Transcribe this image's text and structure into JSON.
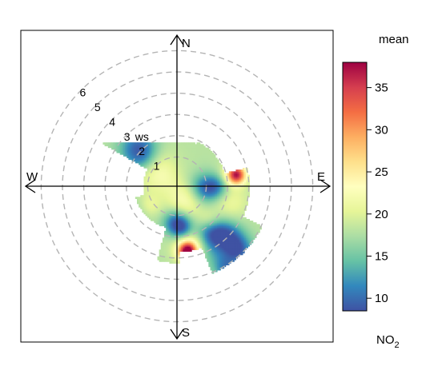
{
  "chart_data": {
    "type": "heatmap",
    "subtype": "polar-plot",
    "title": "",
    "radial_axis": {
      "label": "ws",
      "ticks": [
        1,
        2,
        3,
        4,
        5,
        6
      ],
      "range": [
        0,
        6.6
      ]
    },
    "directions": [
      "N",
      "E",
      "S",
      "W"
    ],
    "colorbar": {
      "title": "mean",
      "label": "NO",
      "label_subscript": "2",
      "range": [
        8.5,
        38
      ],
      "ticks": [
        10,
        15,
        20,
        25,
        30,
        35
      ],
      "colors": [
        "#3f52a3",
        "#3288bd",
        "#66c2a5",
        "#abdda4",
        "#e6f598",
        "#ffffbf",
        "#fee08b",
        "#fdae61",
        "#f46d43",
        "#d53e4f",
        "#9e0142"
      ]
    },
    "grid": true,
    "surface": {
      "extent": [
        -4.0,
        4.0,
        -4.3,
        2.1
      ],
      "resolution": 0.08,
      "sectors": [
        {
          "dir_from": 300,
          "dir_to": 338,
          "ws_max": 4.1
        },
        {
          "dir_from": 338,
          "dir_to": 385,
          "ws_max": 2.2
        },
        {
          "dir_from": 25,
          "dir_to": 75,
          "ws_max": 2.3
        },
        {
          "dir_from": 75,
          "dir_to": 115,
          "ws_max": 3.4
        },
        {
          "dir_from": 115,
          "dir_to": 158,
          "ws_max": 4.4
        },
        {
          "dir_from": 158,
          "dir_to": 178,
          "ws_max": 3.1
        },
        {
          "dir_from": 178,
          "dir_to": 195,
          "ws_max": 3.6
        },
        {
          "dir_from": 195,
          "dir_to": 255,
          "ws_max": 2.0
        },
        {
          "dir_from": 255,
          "dir_to": 300,
          "ws_max": 1.6
        }
      ],
      "base": 18,
      "blobs": [
        {
          "x": -1.8,
          "y": 1.8,
          "s": 0.65,
          "v": -8
        },
        {
          "x": -1.6,
          "y": 1.3,
          "s": 0.5,
          "v": -3
        },
        {
          "x": -1.0,
          "y": 1.1,
          "s": 0.7,
          "v": 2
        },
        {
          "x": -1.0,
          "y": 0.6,
          "s": 0.6,
          "v": 3
        },
        {
          "x": -0.3,
          "y": 0.2,
          "s": 0.45,
          "v": 1
        },
        {
          "x": 0.0,
          "y": -1.7,
          "s": 0.45,
          "v": -9
        },
        {
          "x": 0.25,
          "y": -2.0,
          "s": 0.35,
          "v": -5
        },
        {
          "x": 0.4,
          "y": -0.7,
          "s": 0.6,
          "v": 5
        },
        {
          "x": 1.3,
          "y": -0.1,
          "s": 0.5,
          "v": -8
        },
        {
          "x": 1.9,
          "y": 0.0,
          "s": 0.4,
          "v": -5
        },
        {
          "x": 2.5,
          "y": -0.7,
          "s": 0.6,
          "v": 3
        },
        {
          "x": 2.5,
          "y": 0.6,
          "s": 0.4,
          "v": 3
        },
        {
          "x": 2.8,
          "y": 0.55,
          "s": 0.3,
          "v": 17
        },
        {
          "x": 0.6,
          "y": -2.7,
          "s": 0.55,
          "v": 5
        },
        {
          "x": 1.6,
          "y": -2.2,
          "s": 0.5,
          "v": -8
        },
        {
          "x": 1.5,
          "y": -1.6,
          "s": 0.35,
          "v": 3
        },
        {
          "x": 2.4,
          "y": -2.3,
          "s": 0.5,
          "v": -7
        },
        {
          "x": 2.9,
          "y": -3.0,
          "s": 0.5,
          "v": -8
        },
        {
          "x": 1.8,
          "y": -3.2,
          "s": 0.5,
          "v": -3
        },
        {
          "x": 2.3,
          "y": -3.9,
          "s": 0.4,
          "v": -6
        },
        {
          "x": 0.5,
          "y": -3.05,
          "s": 0.3,
          "v": 20
        },
        {
          "x": -1.9,
          "y": -1.2,
          "s": 0.5,
          "v": -2
        },
        {
          "x": -2.2,
          "y": -0.5,
          "s": 0.5,
          "v": 0
        },
        {
          "x": -1.3,
          "y": -0.9,
          "s": 0.4,
          "v": 3
        }
      ]
    }
  }
}
